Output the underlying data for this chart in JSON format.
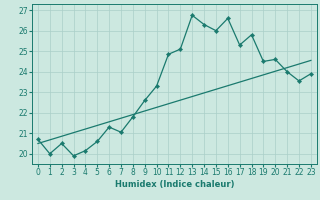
{
  "xlabel": "Humidex (Indice chaleur)",
  "xlim": [
    -0.5,
    23.5
  ],
  "ylim": [
    19.5,
    27.3
  ],
  "yticks": [
    20,
    21,
    22,
    23,
    24,
    25,
    26,
    27
  ],
  "xticks": [
    0,
    1,
    2,
    3,
    4,
    5,
    6,
    7,
    8,
    9,
    10,
    11,
    12,
    13,
    14,
    15,
    16,
    17,
    18,
    19,
    20,
    21,
    22,
    23
  ],
  "bg_color": "#cce8e0",
  "grid_color": "#aacfc8",
  "line_color": "#1a7a6e",
  "line1_x": [
    0,
    1,
    2,
    3,
    4,
    5,
    6,
    7,
    8,
    9,
    10,
    11,
    12,
    13,
    14,
    15,
    16,
    17,
    18,
    19,
    20,
    21,
    22,
    23
  ],
  "line1_y": [
    20.7,
    20.0,
    20.5,
    19.9,
    20.15,
    20.6,
    21.3,
    21.05,
    21.8,
    22.6,
    23.3,
    24.85,
    25.1,
    26.75,
    26.3,
    26.0,
    26.6,
    25.3,
    25.8,
    24.5,
    24.6,
    24.0,
    23.55,
    23.9
  ],
  "line2_x": [
    0,
    23
  ],
  "line2_y": [
    20.5,
    24.55
  ]
}
